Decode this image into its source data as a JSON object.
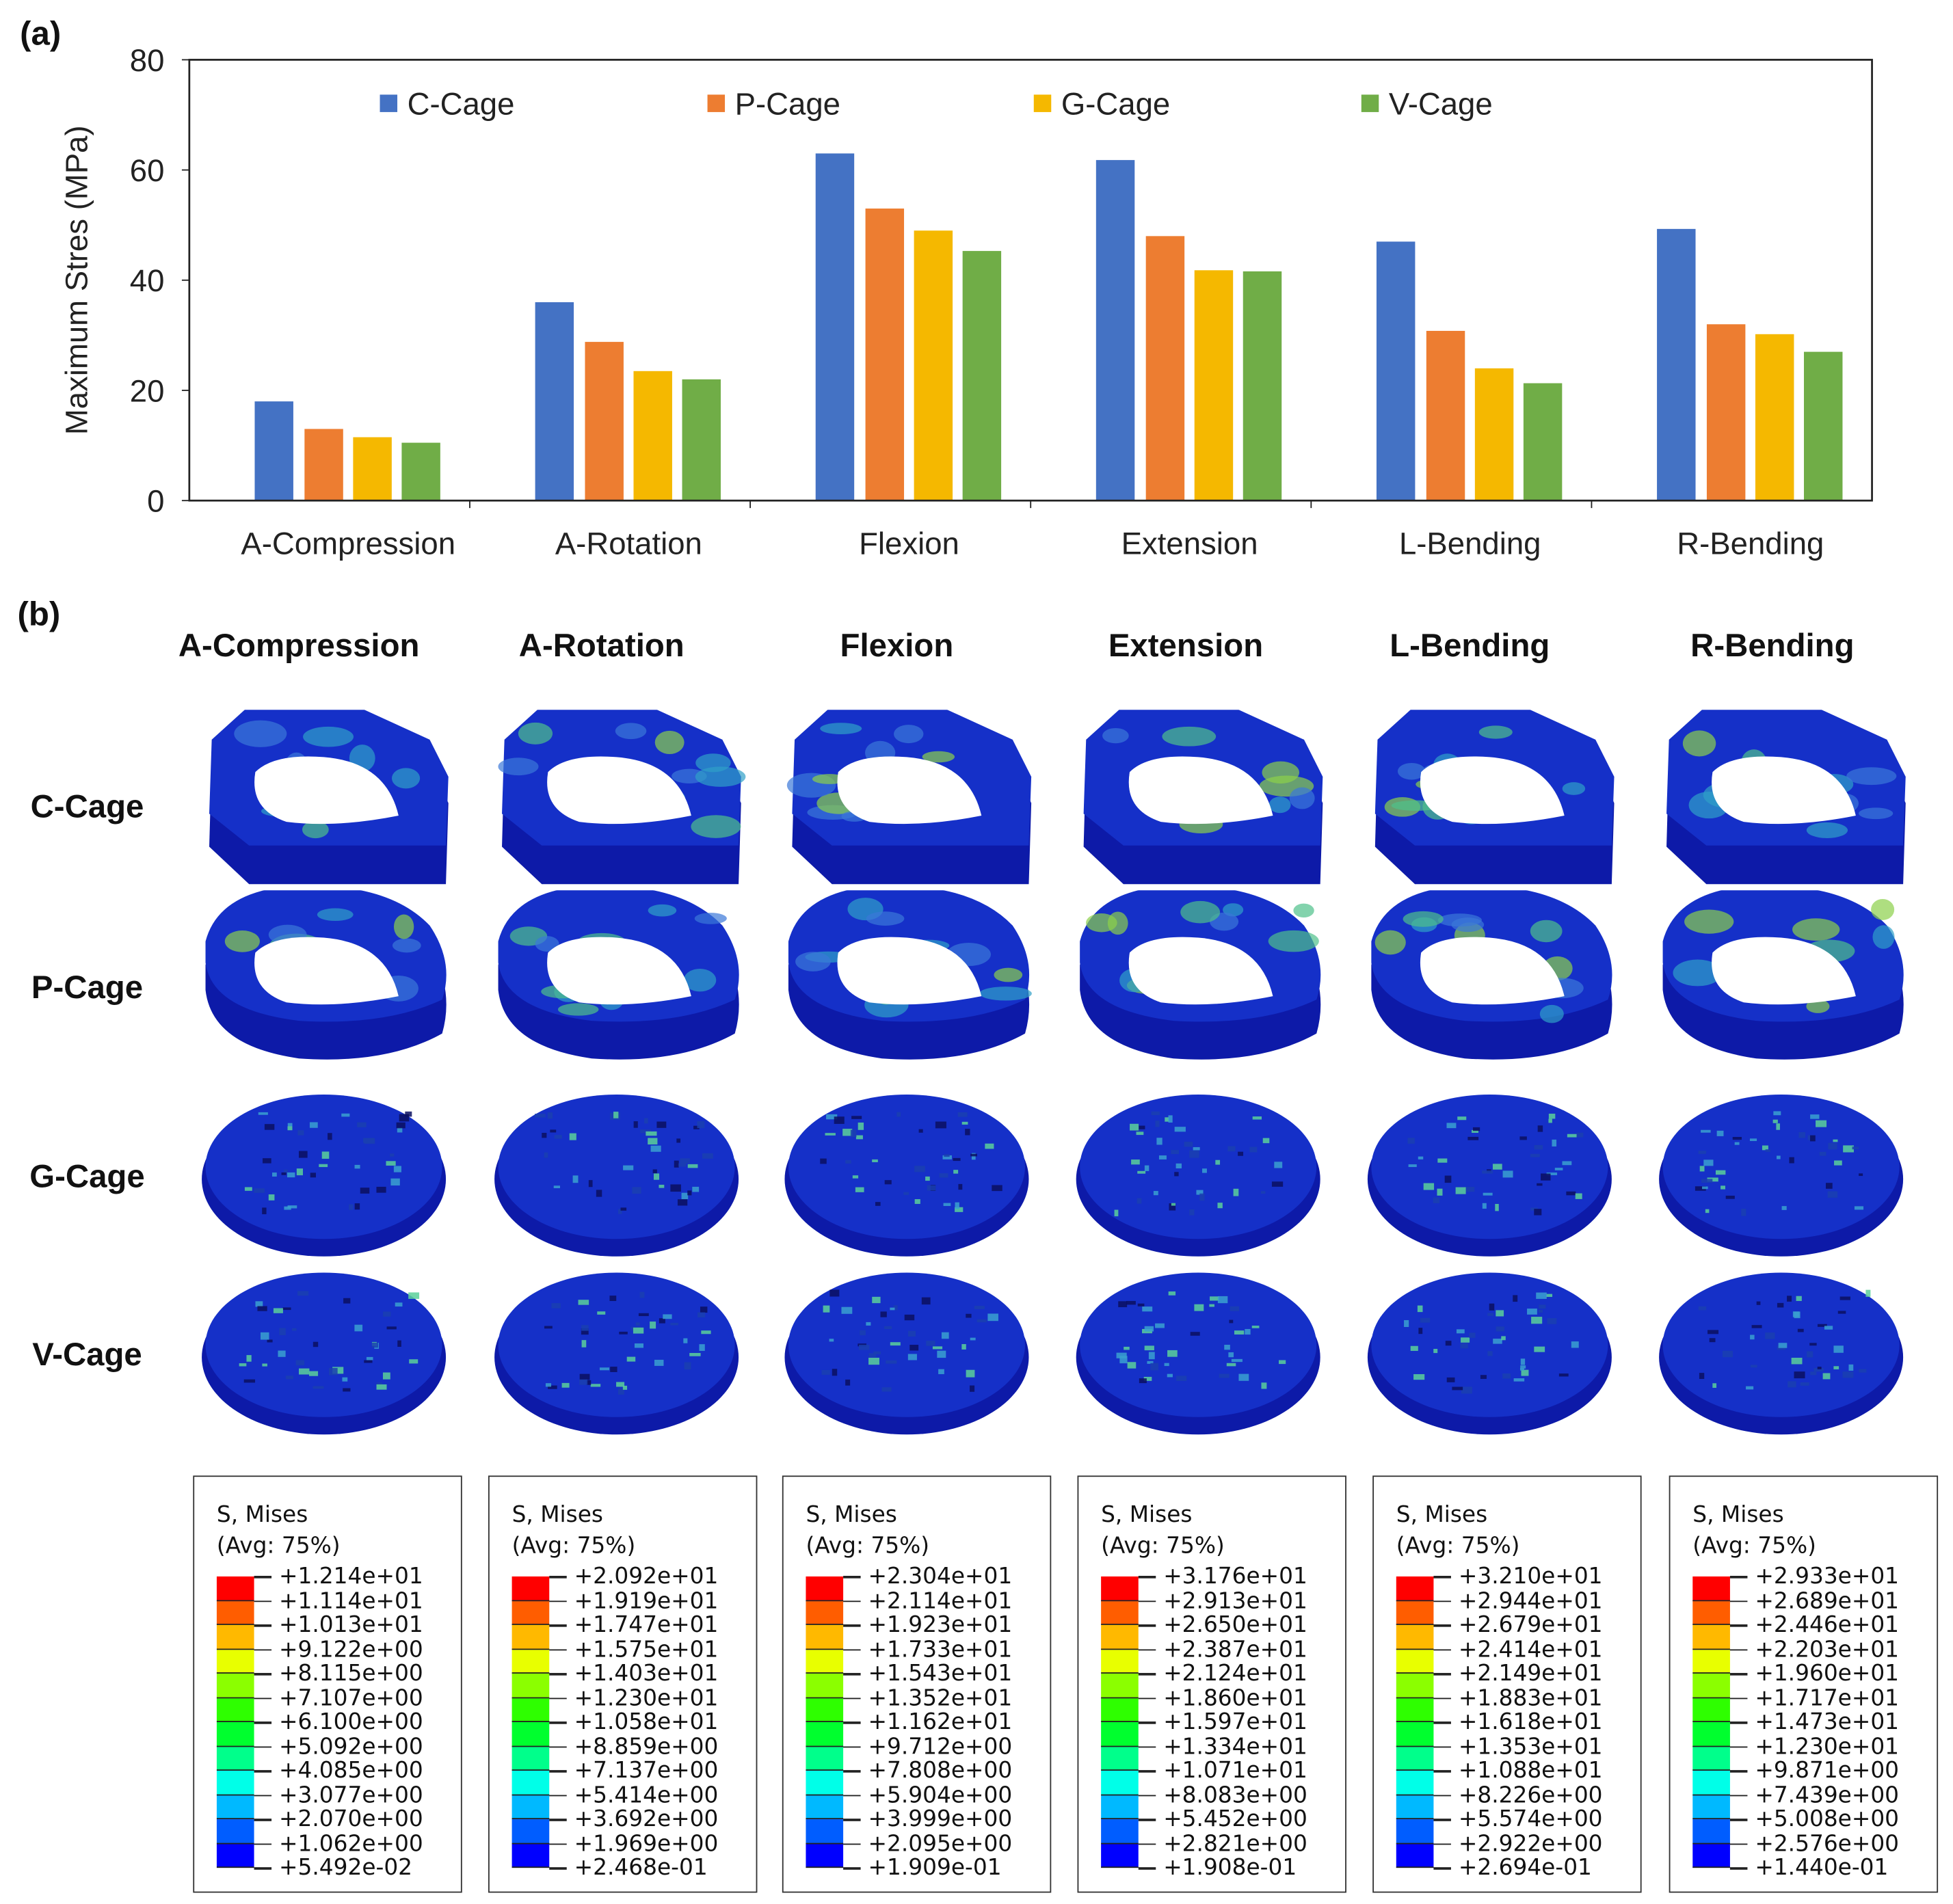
{
  "panel_labels": {
    "a": "(a)",
    "b": "(b)"
  },
  "chart_data": {
    "type": "bar",
    "title": "",
    "xlabel": "",
    "ylabel": "Maximum Stres (MPa)",
    "ylim": [
      0,
      80
    ],
    "yticks": [
      0,
      20,
      40,
      60,
      80
    ],
    "grid": false,
    "legend_position": "top",
    "categories": [
      "A-Compression",
      "A-Rotation",
      "Flexion",
      "Extension",
      "L-Bending",
      "R-Bending"
    ],
    "series": [
      {
        "name": "C-Cage",
        "color": "#4472c4",
        "values": [
          18.0,
          36.0,
          63.0,
          61.8,
          47.0,
          49.3
        ]
      },
      {
        "name": "P-Cage",
        "color": "#ed7d31",
        "values": [
          13.0,
          28.8,
          53.0,
          48.0,
          30.8,
          32.0
        ]
      },
      {
        "name": "G-Cage",
        "color": "#f5b800",
        "values": [
          11.5,
          23.5,
          49.0,
          41.8,
          24.0,
          30.2
        ]
      },
      {
        "name": "V-Cage",
        "color": "#70ad47",
        "values": [
          10.5,
          22.0,
          45.3,
          41.6,
          21.3,
          27.0
        ]
      }
    ]
  },
  "contour": {
    "columns": [
      "A-Compression",
      "A-Rotation",
      "Flexion",
      "Extension",
      "L-Bending",
      "R-Bending"
    ],
    "rows": [
      "C-Cage",
      "P-Cage",
      "G-Cage",
      "V-Cage"
    ],
    "band_colors": [
      "#ff0000",
      "#ff5d00",
      "#ffb900",
      "#e8ff00",
      "#8bff00",
      "#2eff00",
      "#00ff2e",
      "#00ff8b",
      "#00ffe8",
      "#00b9ff",
      "#005dff",
      "#0000ff"
    ],
    "legends": [
      {
        "title": "S, Mises",
        "subtitle": "(Avg: 75%)",
        "values": [
          "+1.214e+01",
          "+1.114e+01",
          "+1.013e+01",
          "+9.122e+00",
          "+8.115e+00",
          "+7.107e+00",
          "+6.100e+00",
          "+5.092e+00",
          "+4.085e+00",
          "+3.077e+00",
          "+2.070e+00",
          "+1.062e+00",
          "+5.492e-02"
        ]
      },
      {
        "title": "S, Mises",
        "subtitle": "(Avg: 75%)",
        "values": [
          "+2.092e+01",
          "+1.919e+01",
          "+1.747e+01",
          "+1.575e+01",
          "+1.403e+01",
          "+1.230e+01",
          "+1.058e+01",
          "+8.859e+00",
          "+7.137e+00",
          "+5.414e+00",
          "+3.692e+00",
          "+1.969e+00",
          "+2.468e-01"
        ]
      },
      {
        "title": "S, Mises",
        "subtitle": "(Avg: 75%)",
        "values": [
          "+2.304e+01",
          "+2.114e+01",
          "+1.923e+01",
          "+1.733e+01",
          "+1.543e+01",
          "+1.352e+01",
          "+1.162e+01",
          "+9.712e+00",
          "+7.808e+00",
          "+5.904e+00",
          "+3.999e+00",
          "+2.095e+00",
          "+1.909e-01"
        ]
      },
      {
        "title": "S, Mises",
        "subtitle": "(Avg: 75%)",
        "values": [
          "+3.176e+01",
          "+2.913e+01",
          "+2.650e+01",
          "+2.387e+01",
          "+2.124e+01",
          "+1.860e+01",
          "+1.597e+01",
          "+1.334e+01",
          "+1.071e+01",
          "+8.083e+00",
          "+5.452e+00",
          "+2.821e+00",
          "+1.908e-01"
        ]
      },
      {
        "title": "S, Mises",
        "subtitle": "(Avg: 75%)",
        "values": [
          "+3.210e+01",
          "+2.944e+01",
          "+2.679e+01",
          "+2.414e+01",
          "+2.149e+01",
          "+1.883e+01",
          "+1.618e+01",
          "+1.353e+01",
          "+1.088e+01",
          "+8.226e+00",
          "+5.574e+00",
          "+2.922e+00",
          "+2.694e-01"
        ]
      },
      {
        "title": "S, Mises",
        "subtitle": "(Avg: 75%)",
        "values": [
          "+2.933e+01",
          "+2.689e+01",
          "+2.446e+01",
          "+2.203e+01",
          "+1.960e+01",
          "+1.717e+01",
          "+1.473e+01",
          "+1.230e+01",
          "+9.871e+00",
          "+7.439e+00",
          "+5.008e+00",
          "+2.576e+00",
          "+1.440e-01"
        ]
      }
    ]
  }
}
